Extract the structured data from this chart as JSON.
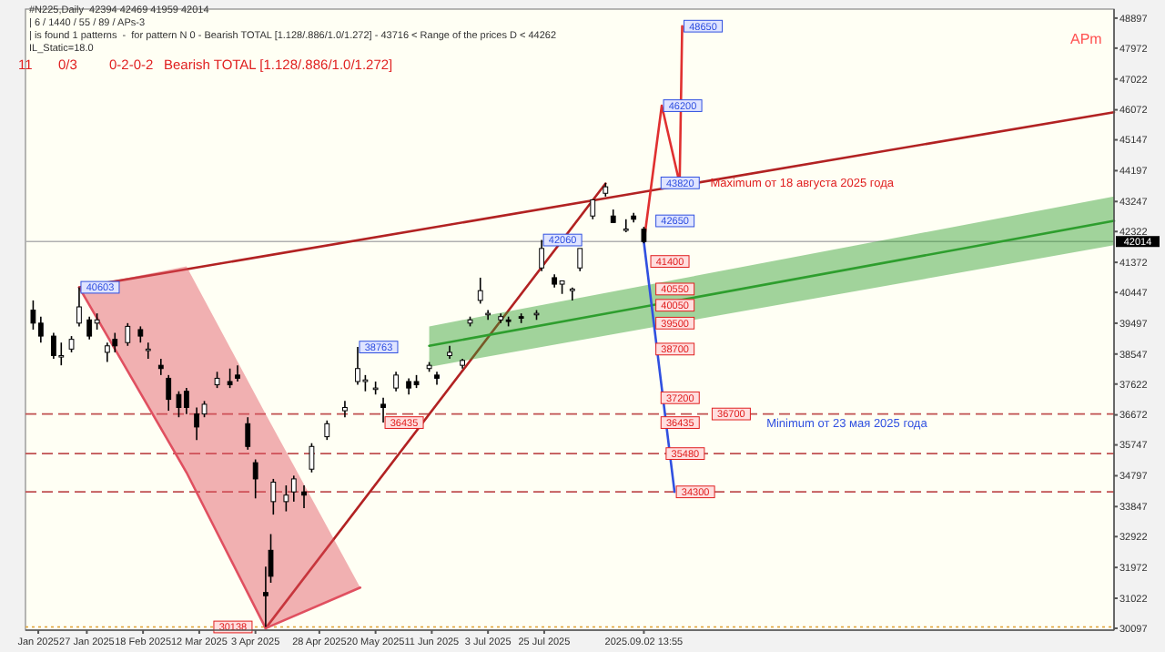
{
  "chart_data": {
    "type": "candlestick",
    "annotations": [
      "#N225,Daily  42394 42469 41959 42014",
      "| 6 / 1440 / 55 / 89 / APs-3",
      "| is found 1 patterns  -  for pattern N 0 - Bearish TOTAL [1.128/.886/1.0/1.272] - 43716 < Range of the prices D < 44262",
      "IL_Static=18.0",
      "11",
      "0/3",
      "0-2-0-2",
      "Bearish TOTAL [1.128/.886/1.0/1.272]",
      "APm",
      {
        "text": "40603",
        "x": "2025-01-24",
        "y": 40603
      },
      {
        "text": "38763",
        "x": "2025-05-13",
        "y": 38763
      },
      {
        "text": "42060",
        "x": "2025-07-24",
        "y": 42060
      },
      {
        "text": "36435",
        "x": "2025-05-23",
        "y": 36435
      },
      {
        "text": "30138",
        "x": "2025-03-17",
        "y": 30138
      },
      {
        "text": "48650",
        "x": "2025-09-17",
        "y": 48650
      },
      {
        "text": "46200",
        "x": "2025-09-09",
        "y": 46200
      },
      {
        "text": "43820",
        "x": "2025-09-08",
        "y": 43820
      },
      {
        "text": "Maximum от 18 августа 2025 года",
        "x": "2025-09-28",
        "y": 43820
      },
      {
        "text": "42650",
        "x": "2025-09-06",
        "y": 42650
      },
      {
        "text": "41400",
        "x": "2025-09-04",
        "y": 41400
      },
      {
        "text": "40550",
        "x": "2025-09-06",
        "y": 40550
      },
      {
        "text": "40050",
        "x": "2025-09-06",
        "y": 40050
      },
      {
        "text": "39500",
        "x": "2025-09-06",
        "y": 39500
      },
      {
        "text": "38700",
        "x": "2025-09-06",
        "y": 38700
      },
      {
        "text": "37200",
        "x": "2025-09-08",
        "y": 37200
      },
      {
        "text": "36700",
        "x": "2025-09-28",
        "y": 36700
      },
      {
        "text": "36435",
        "x": "2025-09-08",
        "y": 36435
      },
      {
        "text": "Minimum от 23 мая 2025 года",
        "x": "2025-10-20",
        "y": 36435
      },
      {
        "text": "35480",
        "x": "2025-09-10",
        "y": 35480
      },
      {
        "text": "34300",
        "x": "2025-09-14",
        "y": 34300
      }
    ],
    "x": [
      "2025-01-06",
      "2025-01-09",
      "2025-01-14",
      "2025-01-17",
      "2025-01-21",
      "2025-01-24",
      "2025-01-28",
      "2025-01-31",
      "2025-02-04",
      "2025-02-07",
      "2025-02-12",
      "2025-02-17",
      "2025-02-20",
      "2025-02-25",
      "2025-02-28",
      "2025-03-04",
      "2025-03-07",
      "2025-03-11",
      "2025-03-14",
      "2025-03-19",
      "2025-03-24",
      "2025-03-27",
      "2025-03-31",
      "2025-04-03",
      "2025-04-07",
      "2025-04-09",
      "2025-04-10",
      "2025-04-15",
      "2025-04-18",
      "2025-04-22",
      "2025-04-25",
      "2025-05-01",
      "2025-05-08",
      "2025-05-13",
      "2025-05-16",
      "2025-05-20",
      "2025-05-23",
      "2025-05-28",
      "2025-06-02",
      "2025-06-05",
      "2025-06-10",
      "2025-06-13",
      "2025-06-18",
      "2025-06-23",
      "2025-06-26",
      "2025-06-30",
      "2025-07-03",
      "2025-07-08",
      "2025-07-11",
      "2025-07-16",
      "2025-07-22",
      "2025-07-24",
      "2025-07-29",
      "2025-08-01",
      "2025-08-05",
      "2025-08-08",
      "2025-08-13",
      "2025-08-18",
      "2025-08-21",
      "2025-08-26",
      "2025-08-29",
      "2025-09-02"
    ],
    "ohlc": [
      [
        39900,
        40200,
        39300,
        39500
      ],
      [
        39500,
        39700,
        38900,
        39100
      ],
      [
        39100,
        39200,
        38400,
        38500
      ],
      [
        38500,
        38900,
        38200,
        38500
      ],
      [
        38700,
        39100,
        38600,
        39000
      ],
      [
        39500,
        40603,
        39400,
        40000
      ],
      [
        39600,
        39700,
        39000,
        39100
      ],
      [
        39500,
        39800,
        39300,
        39600
      ],
      [
        38600,
        38900,
        38300,
        38800
      ],
      [
        39000,
        39200,
        38600,
        38800
      ],
      [
        38900,
        39500,
        38800,
        39400
      ],
      [
        39300,
        39400,
        38900,
        39100
      ],
      [
        38700,
        38900,
        38400,
        38700
      ],
      [
        38200,
        38400,
        37900,
        38100
      ],
      [
        37800,
        37900,
        36800,
        37150
      ],
      [
        37300,
        37400,
        36600,
        36900
      ],
      [
        37400,
        37500,
        36700,
        36900
      ],
      [
        36700,
        36900,
        35900,
        36300
      ],
      [
        36700,
        37100,
        36600,
        37000
      ],
      [
        37600,
        38000,
        37500,
        37800
      ],
      [
        37700,
        38100,
        37500,
        37600
      ],
      [
        37900,
        38200,
        37700,
        37800
      ],
      [
        36400,
        36600,
        35600,
        35700
      ],
      [
        35200,
        35300,
        34100,
        34700
      ],
      [
        31200,
        32000,
        30138,
        31100
      ],
      [
        32500,
        33000,
        31500,
        31700
      ],
      [
        34000,
        34700,
        33600,
        34600
      ],
      [
        34000,
        34500,
        33700,
        34200
      ],
      [
        34300,
        34800,
        34000,
        34700
      ],
      [
        34300,
        34500,
        33800,
        34200
      ],
      [
        35000,
        35800,
        34900,
        35700
      ],
      [
        36000,
        36500,
        35900,
        36400
      ],
      [
        36800,
        37100,
        36600,
        36900
      ],
      [
        37700,
        38763,
        37600,
        38100
      ],
      [
        37700,
        37900,
        37400,
        37750
      ],
      [
        37500,
        37700,
        37300,
        37500
      ],
      [
        37000,
        37200,
        36435,
        36900
      ],
      [
        37500,
        38000,
        37400,
        37900
      ],
      [
        37700,
        37800,
        37300,
        37500
      ],
      [
        37700,
        37900,
        37500,
        37600
      ],
      [
        38100,
        38300,
        38000,
        38200
      ],
      [
        37900,
        38000,
        37600,
        37800
      ],
      [
        38500,
        38800,
        38400,
        38600
      ],
      [
        38200,
        38400,
        38100,
        38350
      ],
      [
        39500,
        39700,
        39400,
        39600
      ],
      [
        40200,
        40900,
        40100,
        40500
      ],
      [
        39800,
        39900,
        39600,
        39800
      ],
      [
        39600,
        39800,
        39500,
        39700
      ],
      [
        39600,
        39700,
        39400,
        39550
      ],
      [
        39700,
        39800,
        39500,
        39650
      ],
      [
        39800,
        39900,
        39600,
        39800
      ],
      [
        41200,
        42060,
        41100,
        41800
      ],
      [
        40900,
        41000,
        40600,
        40700
      ],
      [
        40700,
        40800,
        40400,
        40800
      ],
      [
        40500,
        40600,
        40200,
        40550
      ],
      [
        41200,
        41800,
        41100,
        41800
      ],
      [
        42800,
        43300,
        42700,
        43300
      ],
      [
        43500,
        43820,
        43400,
        43700
      ],
      [
        42800,
        43000,
        42600,
        42600
      ],
      [
        42400,
        42700,
        42300,
        42400
      ],
      [
        42800,
        42900,
        42600,
        42700
      ],
      [
        42394,
        42469,
        41959,
        42014
      ]
    ],
    "series": [
      {
        "type": "line",
        "x": [
          "2025-01-24",
          "2026-03-05"
        ],
        "values": [
          40600,
          46000
        ],
        "color": "#b22222"
      },
      {
        "type": "line",
        "x": [
          "2025-04-07",
          "2025-08-18"
        ],
        "values": [
          30100,
          43800
        ],
        "color": "#b22222"
      },
      {
        "type": "line",
        "x": [
          "2025-06-10",
          "2026-03-05"
        ],
        "values": [
          38800,
          42650
        ],
        "lower": [
          38150,
          41900
        ],
        "upper": [
          39400,
          43400
        ],
        "color": "#2e9e2e"
      },
      {
        "type": "line",
        "x": [
          "2025-01-24",
          "2025-03-07",
          "2025-04-07",
          "2025-05-14"
        ],
        "values": [
          40600,
          34900,
          30100,
          31350
        ],
        "lower": [
          40600,
          34900,
          30100,
          31350
        ],
        "upper": [
          40600,
          41250,
          36700,
          31350
        ],
        "color": "#e05060"
      },
      {
        "type": "line",
        "x": [
          "2025-09-02",
          "2025-09-09",
          "2025-09-16",
          "2025-09-17"
        ],
        "values": [
          42000,
          46200,
          43800,
          48650
        ],
        "color": "#e03030"
      },
      {
        "type": "line",
        "x": [
          "2025-09-02",
          "2025-09-14"
        ],
        "values": [
          42000,
          34300
        ],
        "color": "#3050e0"
      }
    ],
    "ref_lines": [
      {
        "axis": "y",
        "value": 36700,
        "color": "#c05050",
        "line_style": "dashed"
      },
      {
        "axis": "y",
        "value": 35480,
        "color": "#c05050",
        "line_style": "dashed"
      },
      {
        "axis": "y",
        "value": 34300,
        "color": "#c05050",
        "line_style": "dashed"
      },
      {
        "axis": "y",
        "value": 30138,
        "color": "#e0a030",
        "line_style": "dotted"
      },
      {
        "axis": "y",
        "value": 42014,
        "label": "42014",
        "color": "#b0b0b0",
        "line_style": "solid"
      }
    ],
    "xlim": [
      "2025-01-03",
      "2026-03-05"
    ],
    "ylim": [
      30040,
      49175
    ],
    "xticks": [
      {
        "value": "2025-01-08",
        "label": "Jan 2025"
      },
      {
        "value": "2025-01-27",
        "label": "27 Jan 2025"
      },
      {
        "value": "2025-02-18",
        "label": "18 Feb 2025"
      },
      {
        "value": "2025-03-12",
        "label": "12 Mar 2025"
      },
      {
        "value": "2025-04-03",
        "label": "3 Apr 2025"
      },
      {
        "value": "2025-04-28",
        "label": "28 Apr 2025"
      },
      {
        "value": "2025-05-20",
        "label": "20 May 2025"
      },
      {
        "value": "2025-06-11",
        "label": "11 Jun 2025"
      },
      {
        "value": "2025-07-03",
        "label": "3 Jul 2025"
      },
      {
        "value": "2025-07-25",
        "label": "25 Jul 2025"
      },
      {
        "value": "2025-09-02",
        "label": "2025.09.02 13:55"
      }
    ],
    "yticks": [
      48897,
      47972,
      47022,
      46072,
      45147,
      44197,
      43247,
      42322,
      41372,
      40447,
      39497,
      38547,
      37622,
      36672,
      35747,
      34797,
      33847,
      32922,
      31972,
      31022,
      30097
    ]
  }
}
